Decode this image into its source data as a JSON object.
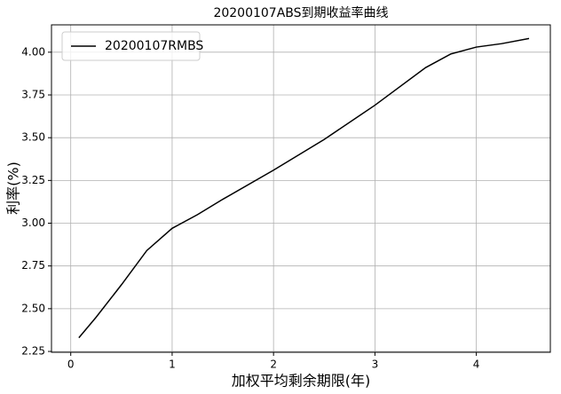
{
  "chart_data": {
    "type": "line",
    "title": "20200107ABS到期收益率曲线",
    "xlabel": "加权平均剩余期限(年)",
    "ylabel": "利率(%)",
    "x": [
      0.08,
      0.25,
      0.5,
      0.75,
      1,
      1.25,
      1.5,
      2,
      2.5,
      3,
      3.5,
      3.75,
      4,
      4.25,
      4.52
    ],
    "series": [
      {
        "name": "20200107RMBS",
        "color": "#000000",
        "values": [
          2.33,
          2.45,
          2.64,
          2.84,
          2.97,
          3.05,
          3.14,
          3.31,
          3.49,
          3.69,
          3.91,
          3.99,
          4.03,
          4.05,
          4.08
        ]
      }
    ],
    "xlim": [
      -0.19,
      4.73
    ],
    "ylim": [
      2.245,
      4.16
    ],
    "xticks": [
      0,
      1,
      2,
      3,
      4
    ],
    "yticks": [
      2.25,
      {
        "value": 2.5,
        "label": "2.50"
      },
      2.75,
      {
        "value": 3,
        "label": "3.00"
      },
      3.25,
      {
        "value": 3.5,
        "label": "3.50"
      },
      3.75,
      {
        "value": 4,
        "label": "4.00"
      }
    ],
    "grid": true,
    "legend": "upper left"
  }
}
